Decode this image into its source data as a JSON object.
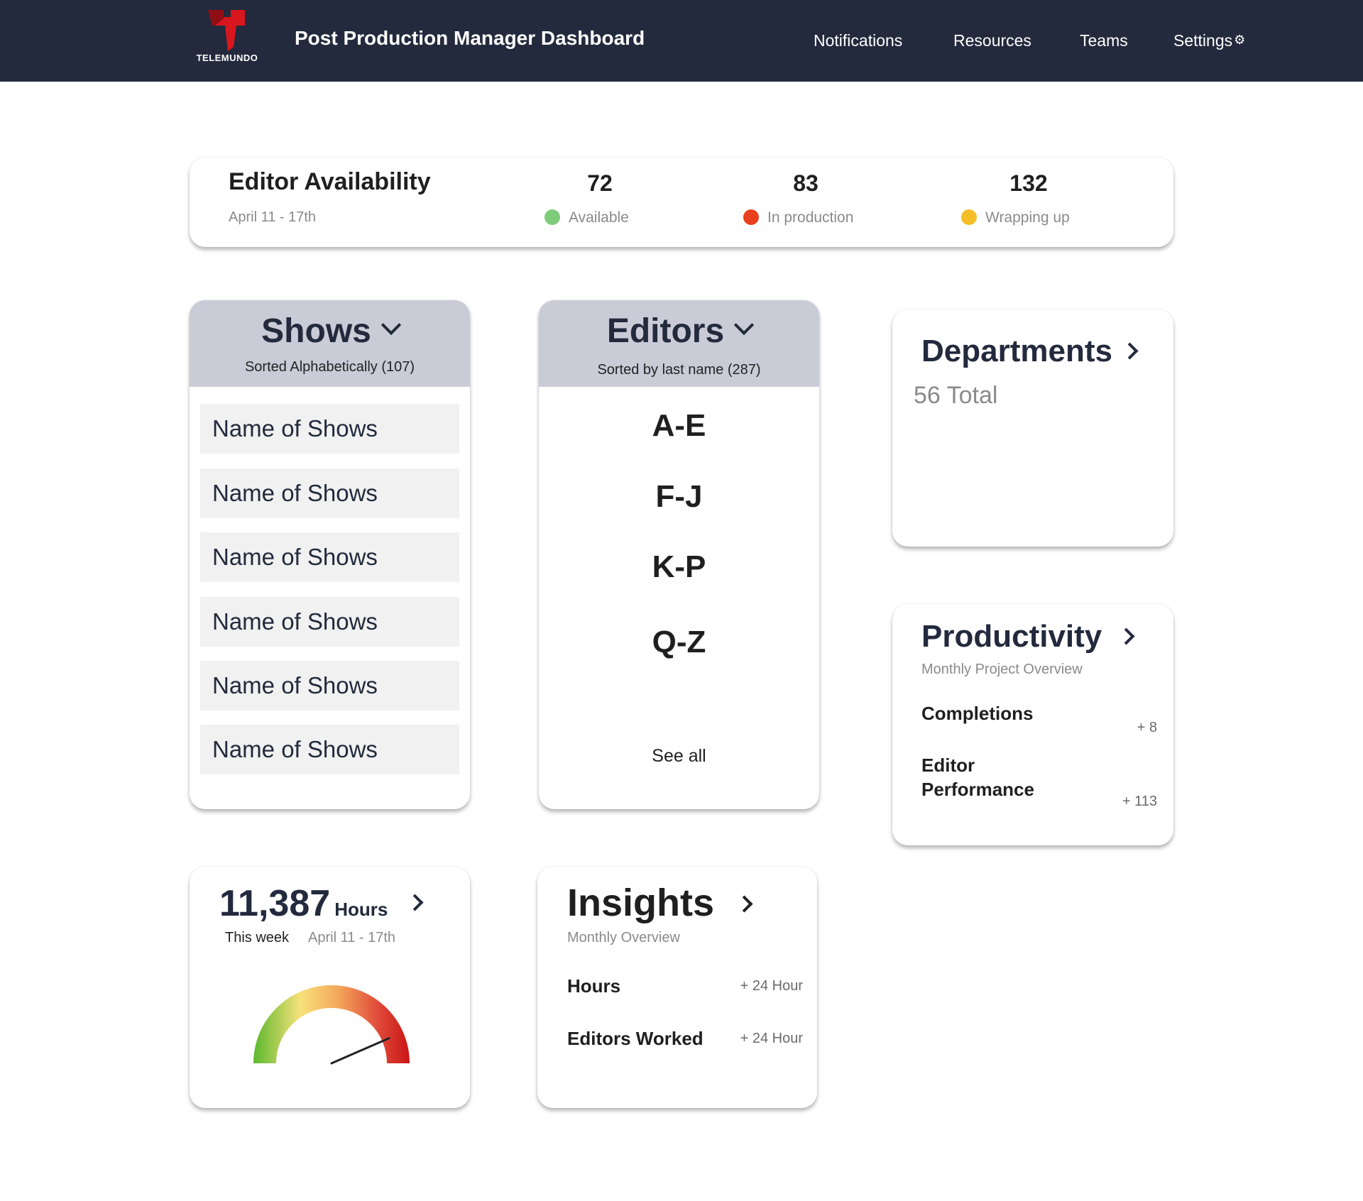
{
  "header": {
    "brand": "TELEMUNDO",
    "title": "Post Production Manager Dashboard",
    "nav": [
      "Notifications",
      "Resources",
      "Teams",
      "Settings"
    ],
    "settings_icon": "gear-icon"
  },
  "availability": {
    "title": "Editor Availability",
    "date_range": "April 11 - 17th",
    "stats": [
      {
        "value": "72",
        "label": "Available",
        "color": "#7ecb7a"
      },
      {
        "value": "83",
        "label": "In production",
        "color": "#e8401c"
      },
      {
        "value": "132",
        "label": "Wrapping up",
        "color": "#f5be26"
      }
    ]
  },
  "shows": {
    "title": "Shows",
    "subtitle": "Sorted Alphabetically (107)",
    "items": [
      "Name of Shows",
      "Name of Shows",
      "Name of Shows",
      "Name of Shows",
      "Name of Shows",
      "Name of Shows"
    ]
  },
  "editors": {
    "title": "Editors",
    "subtitle": "Sorted by last name (287)",
    "ranges": [
      "A-E",
      "F-J",
      "K-P",
      "Q-Z"
    ],
    "see_all": "See all"
  },
  "departments": {
    "title": "Departments",
    "total": "56 Total"
  },
  "productivity": {
    "title": "Productivity",
    "subtitle": "Monthly Project Overview",
    "rows": [
      {
        "label": "Completions",
        "value": "+ 8"
      },
      {
        "label_line1": "Editor",
        "label_line2": "Performance",
        "value": "+ 113"
      }
    ]
  },
  "hours": {
    "value": "11,387",
    "unit": "Hours",
    "period": "This week",
    "date_range": "April 11 - 17th",
    "gauge_level": 0.8
  },
  "insights": {
    "title": "Insights",
    "subtitle": "Monthly Overview",
    "rows": [
      {
        "label": "Hours",
        "value": "+ 24 Hour"
      },
      {
        "label": "Editors Worked",
        "value": "+ 24 Hour"
      }
    ]
  },
  "colors": {
    "header_bg": "#232a3d",
    "panel_header_bg": "#c9ccd6",
    "brand_red": "#d7161e"
  }
}
